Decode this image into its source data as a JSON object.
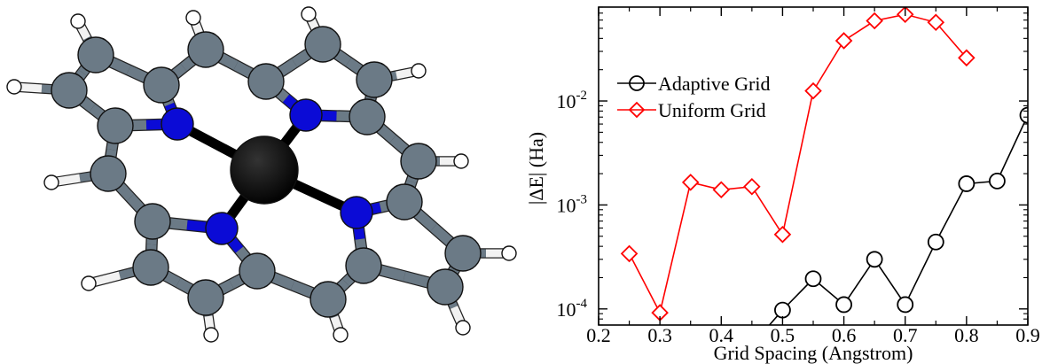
{
  "molecule_figure": {
    "metal_center_color": "#000000",
    "nitrogen_color": "#0b0bd6",
    "carbon_color": "#6b7a86",
    "hydrogen_color": "#ffffff"
  },
  "chart_data": {
    "type": "line",
    "title": "",
    "xlabel": "Grid Spacing (Angstrom)",
    "ylabel": "|ΔE| (Ha)",
    "xscale": "linear",
    "yscale": "log",
    "xlim": [
      0.2,
      0.9
    ],
    "ylim": [
      7e-05,
      0.08
    ],
    "xticks": [
      0.2,
      0.3,
      0.4,
      0.5,
      0.6,
      0.7,
      0.8,
      0.9
    ],
    "xtick_labels": [
      "0.2",
      "0.3",
      "0.4",
      "0.5",
      "0.6",
      "0.7",
      "0.8",
      "0.9"
    ],
    "yticks": [
      0.0001,
      0.001,
      0.01
    ],
    "ytick_labels": [
      {
        "base": "10",
        "exp": "-4"
      },
      {
        "base": "10",
        "exp": "-3"
      },
      {
        "base": "10",
        "exp": "-2"
      }
    ],
    "grid": false,
    "legend_position": "upper-left",
    "series": [
      {
        "name": "Adaptive Grid",
        "color": "#000000",
        "marker": "circle",
        "x": [
          0.45,
          0.5,
          0.55,
          0.6,
          0.65,
          0.7,
          0.75,
          0.8,
          0.85,
          0.9
        ],
        "y": [
          4.5e-05,
          9.75e-05,
          0.000195,
          0.00011,
          0.0003,
          0.00011,
          0.00044,
          0.0016,
          0.0017,
          0.0073
        ]
      },
      {
        "name": "Uniform Grid",
        "color": "#ff0000",
        "marker": "diamond",
        "x": [
          0.25,
          0.3,
          0.35,
          0.4,
          0.45,
          0.5,
          0.55,
          0.6,
          0.65,
          0.7,
          0.75,
          0.8
        ],
        "y": [
          0.00034,
          9.2e-05,
          0.00165,
          0.0014,
          0.0015,
          0.00052,
          0.0125,
          0.038,
          0.059,
          0.068,
          0.057,
          0.026
        ]
      }
    ]
  }
}
